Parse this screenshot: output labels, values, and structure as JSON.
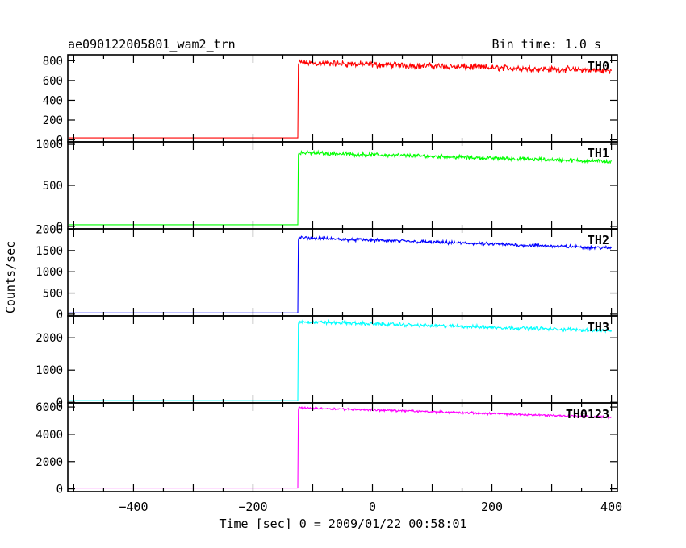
{
  "header": {
    "title": "ae090122005801_wam2_trn",
    "bin_time": "Bin time: 1.0 s"
  },
  "chart_data": {
    "type": "line",
    "xlabel": "Time [sec] 0 = 2009/01/22 00:58:01",
    "ylabel": "Counts/sec",
    "xlim": [
      -510,
      410
    ],
    "x_ticks": [
      -400,
      -200,
      0,
      200,
      400
    ],
    "x_tick_labels": [
      "−400",
      "−200",
      "0",
      "200",
      "400"
    ],
    "onset_time": -124,
    "panels": [
      {
        "name": "TH0",
        "color": "#ff0000",
        "ylim": [
          -20,
          860
        ],
        "yticks": [
          0,
          200,
          400,
          600,
          800
        ],
        "ytick_labels": [
          "0",
          "200",
          "400",
          "600",
          "800"
        ],
        "background": 20,
        "peak": 780,
        "end": 700,
        "noise": 40
      },
      {
        "name": "TH1",
        "color": "#00ff00",
        "ylim": [
          -30,
          1030
        ],
        "yticks": [
          0,
          500,
          1000
        ],
        "ytick_labels": [
          "0",
          "500",
          "1000"
        ],
        "background": 20,
        "peak": 900,
        "end": 790,
        "noise": 30
      },
      {
        "name": "TH2",
        "color": "#0000ff",
        "ylim": [
          -40,
          2010
        ],
        "yticks": [
          0,
          500,
          1000,
          1500,
          2000
        ],
        "ytick_labels": [
          "0",
          "500",
          "1000",
          "1500",
          "2000"
        ],
        "background": 30,
        "peak": 1800,
        "end": 1560,
        "noise": 50
      },
      {
        "name": "TH3",
        "color": "#00ffff",
        "ylim": [
          -20,
          2680
        ],
        "yticks": [
          0,
          1000,
          2000
        ],
        "ytick_labels": [
          "0",
          "1000",
          "2000"
        ],
        "background": 50,
        "peak": 2500,
        "end": 2220,
        "noise": 70
      },
      {
        "name": "TH0123",
        "color": "#ff00ff",
        "ylim": [
          -200,
          6300
        ],
        "yticks": [
          0,
          2000,
          4000,
          6000
        ],
        "ytick_labels": [
          "0",
          "2000",
          "4000",
          "6000"
        ],
        "background": 60,
        "peak": 5950,
        "end": 5250,
        "noise": 100
      }
    ]
  }
}
